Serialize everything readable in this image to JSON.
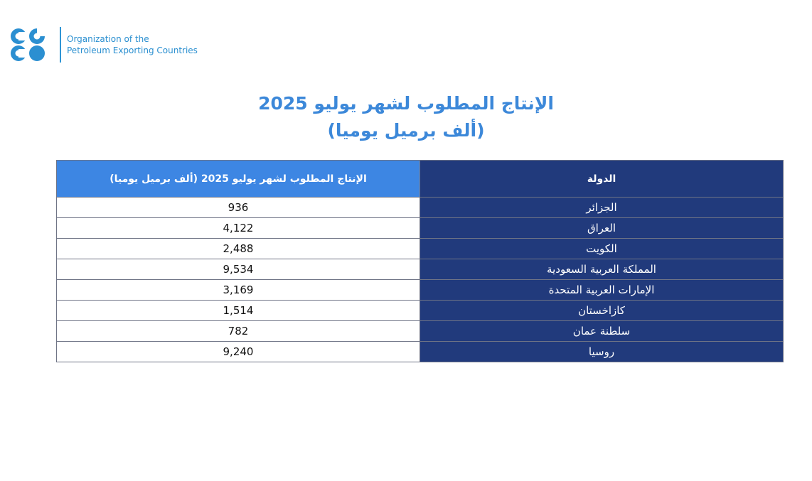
{
  "logo": {
    "line1": "Organization of the",
    "line2": "Petroleum Exporting Countries",
    "colors": {
      "primary": "#2a8fd0"
    }
  },
  "title": {
    "line1": "الإنتاج المطلوب لشهر يوليو 2025",
    "line2": "(ألف برميل يوميا)"
  },
  "table": {
    "headers": {
      "country": "الدولة",
      "value": "الإنتاج المطلوب لشهر يوليو 2025 (ألف برميل يوميا)"
    },
    "rows": [
      {
        "country": "الجزائر",
        "value": "936"
      },
      {
        "country": "العراق",
        "value": "4,122"
      },
      {
        "country": "الكويت",
        "value": "2,488"
      },
      {
        "country": "المملكة العربية السعودية",
        "value": "9,534"
      },
      {
        "country": "الإمارات العربية المتحدة",
        "value": "3,169"
      },
      {
        "country": "كازاخستان",
        "value": "1,514"
      },
      {
        "country": "سلطنة عمان",
        "value": "782"
      },
      {
        "country": "روسيا",
        "value": "9,240"
      }
    ]
  },
  "colors": {
    "title": "#3c88d9",
    "header_value_bg": "#3d86e3",
    "country_bg": "#213a7c"
  }
}
